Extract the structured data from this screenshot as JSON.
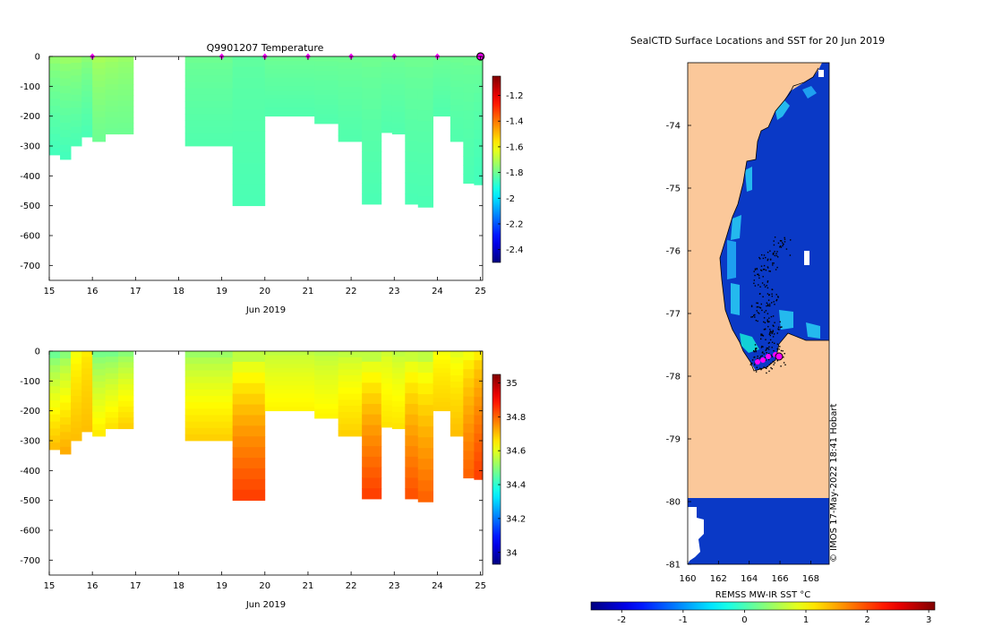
{
  "chart_data": [
    {
      "type": "heatmap",
      "title": "Q9901207  Temperature",
      "xlabel": "Jun 2019",
      "ylabel": "",
      "x_ticks": [
        15,
        16,
        17,
        18,
        19,
        20,
        21,
        22,
        23,
        24,
        25
      ],
      "y_ticks": [
        0,
        -100,
        -200,
        -300,
        -400,
        -500,
        -600,
        -700
      ],
      "xlim": [
        15,
        25.05
      ],
      "ylim": [
        -750,
        0
      ],
      "colorbar": {
        "ticks": [
          -1.2,
          -1.4,
          -1.6,
          -1.8,
          -2,
          -2.2,
          -2.4
        ],
        "tick_labels": [
          "-1.2",
          "-1.4",
          "-1.6",
          "-1.8",
          "-2",
          "-2.2",
          "-2.4"
        ],
        "range": [
          -2.5,
          -1.05
        ]
      },
      "profiles": [
        {
          "x0": 15.0,
          "x1": 15.25,
          "depth": 330,
          "surface": -1.75,
          "deep": -1.86
        },
        {
          "x0": 15.25,
          "x1": 15.5,
          "depth": 345,
          "surface": -1.74,
          "deep": -1.86
        },
        {
          "x0": 15.5,
          "x1": 15.75,
          "depth": 300,
          "surface": -1.74,
          "deep": -1.85
        },
        {
          "x0": 15.75,
          "x1": 16.0,
          "depth": 270,
          "surface": -1.76,
          "deep": -1.85
        },
        {
          "x0": 16.0,
          "x1": 16.3,
          "depth": 285,
          "surface": -1.72,
          "deep": -1.8
        },
        {
          "x0": 16.3,
          "x1": 16.6,
          "depth": 260,
          "surface": -1.73,
          "deep": -1.8
        },
        {
          "x0": 16.6,
          "x1": 16.95,
          "depth": 260,
          "surface": -1.74,
          "deep": -1.8
        },
        {
          "x0": 18.15,
          "x1": 19.25,
          "depth": 300,
          "surface": -1.8,
          "deep": -1.84
        },
        {
          "x0": 19.25,
          "x1": 20.0,
          "depth": 500,
          "surface": -1.82,
          "deep": -1.85
        },
        {
          "x0": 20.0,
          "x1": 21.15,
          "depth": 200,
          "surface": -1.8,
          "deep": -1.84
        },
        {
          "x0": 21.15,
          "x1": 21.7,
          "depth": 225,
          "surface": -1.8,
          "deep": -1.84
        },
        {
          "x0": 21.7,
          "x1": 22.25,
          "depth": 285,
          "surface": -1.8,
          "deep": -1.84
        },
        {
          "x0": 22.25,
          "x1": 22.7,
          "depth": 495,
          "surface": -1.8,
          "deep": -1.85
        },
        {
          "x0": 22.7,
          "x1": 22.95,
          "depth": 255,
          "surface": -1.8,
          "deep": -1.84
        },
        {
          "x0": 22.95,
          "x1": 23.25,
          "depth": 260,
          "surface": -1.8,
          "deep": -1.84
        },
        {
          "x0": 23.25,
          "x1": 23.55,
          "depth": 495,
          "surface": -1.8,
          "deep": -1.85
        },
        {
          "x0": 23.55,
          "x1": 23.9,
          "depth": 505,
          "surface": -1.8,
          "deep": -1.85
        },
        {
          "x0": 23.9,
          "x1": 24.3,
          "depth": 200,
          "surface": -1.8,
          "deep": -1.84
        },
        {
          "x0": 24.3,
          "x1": 24.6,
          "depth": 285,
          "surface": -1.8,
          "deep": -1.84
        },
        {
          "x0": 24.6,
          "x1": 24.85,
          "depth": 425,
          "surface": -1.8,
          "deep": -1.85
        },
        {
          "x0": 24.85,
          "x1": 25.05,
          "depth": 430,
          "surface": -1.8,
          "deep": -1.86
        }
      ],
      "markers": [
        16,
        19,
        20,
        21,
        22,
        23,
        24,
        25
      ]
    },
    {
      "type": "heatmap",
      "title": "",
      "xlabel": "Jun 2019",
      "ylabel": "",
      "x_ticks": [
        15,
        16,
        17,
        18,
        19,
        20,
        21,
        22,
        23,
        24,
        25
      ],
      "y_ticks": [
        0,
        -100,
        -200,
        -300,
        -400,
        -500,
        -600,
        -700
      ],
      "xlim": [
        15,
        25.05
      ],
      "ylim": [
        -750,
        0
      ],
      "colorbar": {
        "ticks": [
          35,
          34.8,
          34.6,
          34.4,
          34.2,
          34
        ],
        "tick_labels": [
          "35",
          "34.8",
          "34.6",
          "34.4",
          "34.2",
          "34"
        ],
        "range": [
          33.93,
          35.05
        ]
      },
      "profiles": [
        {
          "x0": 15.0,
          "x1": 15.25,
          "depth": 330,
          "surface": 34.47,
          "deep": 34.7
        },
        {
          "x0": 15.25,
          "x1": 15.5,
          "depth": 345,
          "surface": 34.5,
          "deep": 34.72
        },
        {
          "x0": 15.5,
          "x1": 15.75,
          "depth": 300,
          "surface": 34.62,
          "deep": 34.7
        },
        {
          "x0": 15.75,
          "x1": 16.0,
          "depth": 270,
          "surface": 34.65,
          "deep": 34.7
        },
        {
          "x0": 16.0,
          "x1": 16.3,
          "depth": 285,
          "surface": 34.48,
          "deep": 34.65
        },
        {
          "x0": 16.3,
          "x1": 16.6,
          "depth": 260,
          "surface": 34.48,
          "deep": 34.66
        },
        {
          "x0": 16.6,
          "x1": 16.95,
          "depth": 260,
          "surface": 34.5,
          "deep": 34.68
        },
        {
          "x0": 18.15,
          "x1": 19.25,
          "depth": 300,
          "surface": 34.52,
          "deep": 34.68
        },
        {
          "x0": 19.25,
          "x1": 20.0,
          "depth": 500,
          "surface": 34.56,
          "deep": 34.84
        },
        {
          "x0": 20.0,
          "x1": 21.15,
          "depth": 200,
          "surface": 34.56,
          "deep": 34.64
        },
        {
          "x0": 21.15,
          "x1": 21.7,
          "depth": 225,
          "surface": 34.55,
          "deep": 34.64
        },
        {
          "x0": 21.7,
          "x1": 22.25,
          "depth": 285,
          "surface": 34.56,
          "deep": 34.68
        },
        {
          "x0": 22.25,
          "x1": 22.7,
          "depth": 495,
          "surface": 34.56,
          "deep": 34.84
        },
        {
          "x0": 22.7,
          "x1": 22.95,
          "depth": 255,
          "surface": 34.58,
          "deep": 34.66
        },
        {
          "x0": 22.95,
          "x1": 23.25,
          "depth": 260,
          "surface": 34.56,
          "deep": 34.66
        },
        {
          "x0": 23.25,
          "x1": 23.55,
          "depth": 495,
          "surface": 34.57,
          "deep": 34.82
        },
        {
          "x0": 23.55,
          "x1": 23.9,
          "depth": 505,
          "surface": 34.56,
          "deep": 34.8
        },
        {
          "x0": 23.9,
          "x1": 24.3,
          "depth": 200,
          "surface": 34.62,
          "deep": 34.68
        },
        {
          "x0": 24.3,
          "x1": 24.6,
          "depth": 285,
          "surface": 34.6,
          "deep": 34.7
        },
        {
          "x0": 24.6,
          "x1": 24.85,
          "depth": 425,
          "surface": 34.62,
          "deep": 34.8
        },
        {
          "x0": 24.85,
          "x1": 25.05,
          "depth": 430,
          "surface": 34.65,
          "deep": 34.84
        }
      ]
    },
    {
      "type": "heatmap",
      "title": "SealCTD Surface Locations and SST for 20 Jun 2019",
      "xlabel": "",
      "ylabel": "",
      "x_ticks": [
        160,
        162,
        164,
        166,
        168
      ],
      "y_ticks": [
        -74,
        -75,
        -76,
        -77,
        -78,
        -79,
        -80,
        -81
      ],
      "xlim": [
        160,
        169.2
      ],
      "ylim": [
        -81,
        -73
      ],
      "colorbar": {
        "label": "REMSS MW-IR SST °C",
        "ticks": [
          -2,
          -1,
          0,
          1,
          2,
          3
        ],
        "tick_labels": [
          "-2",
          "-1",
          "0",
          "1",
          "2",
          "3"
        ],
        "range": [
          -2.5,
          3.1
        ]
      },
      "land_color": "#fbc89a",
      "ocean_sst_color": "#0a39c6",
      "credit": "© IMOS 17-May-2022 18:41 Hobart"
    }
  ],
  "colors": {
    "axis": "#000000",
    "marker": "#ff00ff"
  }
}
